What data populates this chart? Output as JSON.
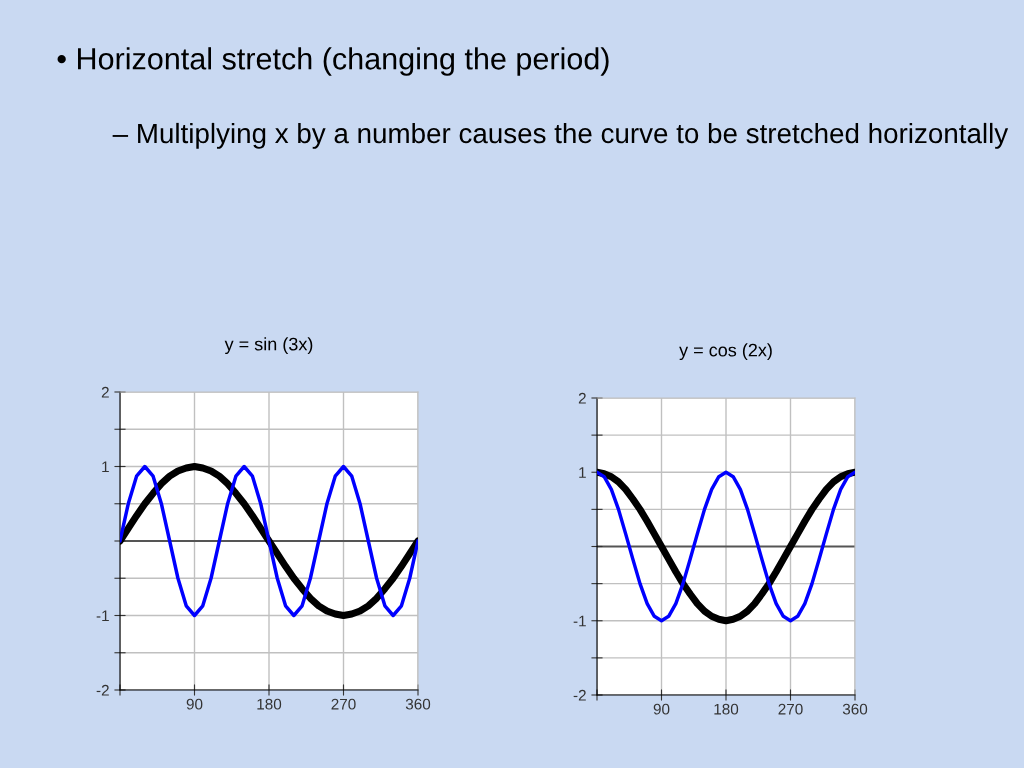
{
  "chart_data": [
    {
      "type": "line",
      "title": "y = sin (3x)",
      "annotations": [
        "• Horizontal stretch (changing the period)",
        "– Multiplying x by a number causes the curve to be stretched horizontally"
      ],
      "xlim": [
        0,
        360
      ],
      "ylim": [
        -2,
        2
      ],
      "xticks": [
        {
          "value": 0,
          "label": null
        },
        90,
        180,
        270,
        360
      ],
      "yticks": [
        -2,
        {
          "value": -1.5,
          "label": null
        },
        -1,
        {
          "value": -0.5,
          "label": null
        },
        {
          "value": 0,
          "label": null
        },
        {
          "value": 0.5,
          "label": null
        },
        1,
        {
          "value": 1.5,
          "label": null
        },
        2
      ],
      "grid": true,
      "marker": "none",
      "line_style": "solid",
      "series": [
        {
          "color": "#000000",
          "x": [
            0,
            10,
            20,
            30,
            40,
            50,
            60,
            70,
            80,
            90,
            100,
            110,
            120,
            130,
            140,
            150,
            160,
            170,
            180,
            190,
            200,
            210,
            220,
            230,
            240,
            250,
            260,
            270,
            280,
            290,
            300,
            310,
            320,
            330,
            340,
            350,
            360
          ],
          "values": [
            0,
            0.17,
            0.34,
            0.5,
            0.64,
            0.77,
            0.87,
            0.94,
            0.98,
            1,
            0.98,
            0.94,
            0.87,
            0.77,
            0.64,
            0.5,
            0.34,
            0.17,
            0,
            -0.17,
            -0.34,
            -0.5,
            -0.64,
            -0.77,
            -0.87,
            -0.94,
            -0.98,
            -1,
            -0.98,
            -0.94,
            -0.87,
            -0.77,
            -0.64,
            -0.5,
            -0.34,
            -0.17,
            0
          ]
        },
        {
          "color": "#0000ff",
          "x": [
            0,
            10,
            20,
            30,
            40,
            50,
            60,
            70,
            80,
            90,
            100,
            110,
            120,
            130,
            140,
            150,
            160,
            170,
            180,
            190,
            200,
            210,
            220,
            230,
            240,
            250,
            260,
            270,
            280,
            290,
            300,
            310,
            320,
            330,
            340,
            350,
            360
          ],
          "values": [
            0,
            0.5,
            0.87,
            1,
            0.87,
            0.5,
            0,
            -0.5,
            -0.87,
            -1,
            -0.87,
            -0.5,
            0,
            0.5,
            0.87,
            1,
            0.87,
            0.5,
            0,
            -0.5,
            -0.87,
            -1,
            -0.87,
            -0.5,
            0,
            0.5,
            0.87,
            1,
            0.87,
            0.5,
            0,
            -0.5,
            -0.87,
            -1,
            -0.87,
            -0.5,
            0
          ]
        }
      ]
    },
    {
      "type": "line",
      "title": "y = cos (2x)",
      "xlim": [
        0,
        360
      ],
      "ylim": [
        -2,
        2
      ],
      "xticks": [
        {
          "value": 0,
          "label": null
        },
        90,
        180,
        270,
        360
      ],
      "yticks": [
        -2,
        {
          "value": -1.5,
          "label": null
        },
        -1,
        {
          "value": -0.5,
          "label": null
        },
        {
          "value": 0,
          "label": null
        },
        {
          "value": 0.5,
          "label": null
        },
        1,
        {
          "value": 1.5,
          "label": null
        },
        2
      ],
      "grid": true,
      "marker": "none",
      "line_style": "solid",
      "series": [
        {
          "color": "#000000",
          "x": [
            0,
            10,
            20,
            30,
            40,
            50,
            60,
            70,
            80,
            90,
            100,
            110,
            120,
            130,
            140,
            150,
            160,
            170,
            180,
            190,
            200,
            210,
            220,
            230,
            240,
            250,
            260,
            270,
            280,
            290,
            300,
            310,
            320,
            330,
            340,
            350,
            360
          ],
          "values": [
            1,
            0.98,
            0.94,
            0.87,
            0.77,
            0.64,
            0.5,
            0.34,
            0.17,
            0,
            -0.17,
            -0.34,
            -0.5,
            -0.64,
            -0.77,
            -0.87,
            -0.94,
            -0.98,
            -1,
            -0.98,
            -0.94,
            -0.87,
            -0.77,
            -0.64,
            -0.5,
            -0.34,
            -0.17,
            0,
            0.17,
            0.34,
            0.5,
            0.64,
            0.77,
            0.87,
            0.94,
            0.98,
            1
          ]
        },
        {
          "color": "#0000ff",
          "x": [
            0,
            10,
            20,
            30,
            40,
            50,
            60,
            70,
            80,
            90,
            100,
            110,
            120,
            130,
            140,
            150,
            160,
            170,
            180,
            190,
            200,
            210,
            220,
            230,
            240,
            250,
            260,
            270,
            280,
            290,
            300,
            310,
            320,
            330,
            340,
            350,
            360
          ],
          "values": [
            1,
            0.94,
            0.77,
            0.5,
            0.17,
            -0.17,
            -0.5,
            -0.77,
            -0.94,
            -1,
            -0.94,
            -0.77,
            -0.5,
            -0.17,
            0.17,
            0.5,
            0.77,
            0.94,
            1,
            0.94,
            0.77,
            0.5,
            0.17,
            -0.17,
            -0.5,
            -0.77,
            -0.94,
            -1,
            -0.94,
            -0.77,
            -0.5,
            -0.17,
            0.17,
            0.5,
            0.77,
            0.94,
            1
          ]
        }
      ]
    }
  ]
}
